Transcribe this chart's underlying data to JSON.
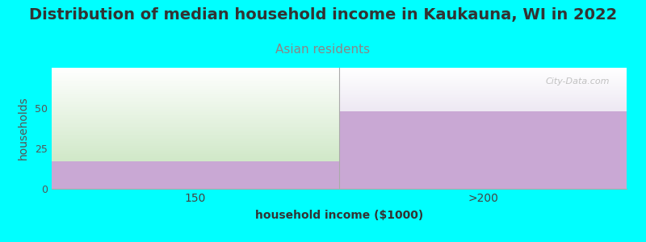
{
  "title": "Distribution of median household income in Kaukauna, WI in 2022",
  "subtitle": "Asian residents",
  "xlabel": "household income ($1000)",
  "ylabel": "households",
  "background_color": "#00FFFF",
  "plot_bg_color": "#FFFFFF",
  "categories": [
    "150",
    ">200"
  ],
  "bar_values": [
    17,
    48
  ],
  "bar_color": "#C9A8D4",
  "ylim": [
    0,
    75
  ],
  "yticks": [
    0,
    25,
    50
  ],
  "title_fontsize": 14,
  "title_color": "#333333",
  "subtitle_fontsize": 11,
  "subtitle_color": "#888888",
  "axis_label_fontsize": 10,
  "watermark": "City-Data.com",
  "bar_max": 75,
  "left_top_color_bottom": "#D0E8C8",
  "left_top_color_top": "#FFFFFF",
  "right_top_color_bottom": "#EDE8F0",
  "right_top_color_top": "#FFFFFF"
}
